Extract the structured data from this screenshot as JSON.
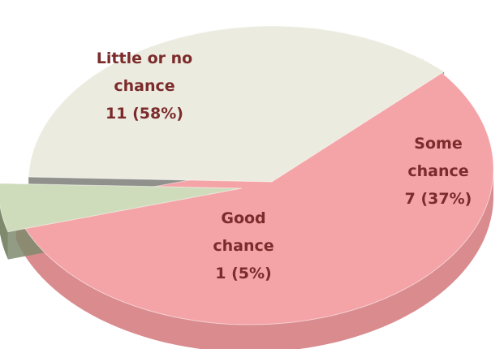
{
  "chart_data": {
    "type": "pie",
    "style": "3d-exploded",
    "title": "",
    "slices": [
      {
        "label_lines": [
          "Little or no",
          "chance",
          "11 (58%)"
        ],
        "count": 11,
        "percent": 58,
        "color": "#f4a3a6",
        "side_color": "#d98b8e"
      },
      {
        "label_lines": [
          "Good",
          "chance",
          "1 (5%)"
        ],
        "count": 1,
        "percent": 5,
        "color": "#cfdcbc",
        "side_color": "#7f8a6d"
      },
      {
        "label_lines": [
          "Some",
          "chance",
          "7 (37%)"
        ],
        "count": 7,
        "percent": 37,
        "color": "#ecebdf",
        "side_color": "#7d7d78"
      }
    ]
  }
}
